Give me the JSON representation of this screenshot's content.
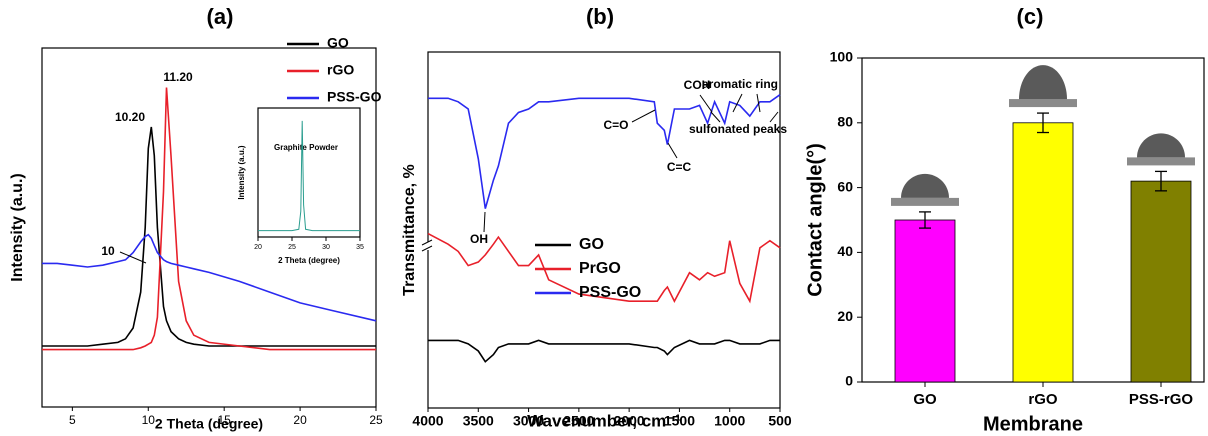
{
  "chart_data": [
    {
      "type": "line",
      "title": "(a)",
      "x_label": "2 Theta (degree)",
      "y_label": "Intensity (a.u.)",
      "x": [
        3,
        4,
        5,
        6,
        7,
        8,
        8.5,
        9,
        9.5,
        9.8,
        10,
        10.2,
        10.4,
        10.6,
        11,
        11.2,
        11.5,
        12,
        12.5,
        13,
        14,
        16,
        18,
        20,
        22,
        25
      ],
      "xlim": [
        3,
        25
      ],
      "xticks": [
        5,
        10,
        15,
        20,
        25
      ],
      "ylim": [
        0,
        100
      ],
      "legend": "upper right",
      "series": [
        {
          "name": "GO",
          "color": "#000000",
          "values": [
            17,
            17,
            17,
            17,
            17.5,
            18,
            19,
            22,
            32,
            50,
            72,
            78,
            70,
            50,
            28,
            24,
            21,
            19,
            18,
            17.5,
            17,
            17,
            17,
            17,
            17,
            17
          ]
        },
        {
          "name": "rGO",
          "color": "#e8202a",
          "values": [
            16,
            16,
            16,
            16,
            16,
            16,
            16,
            16,
            16.5,
            17,
            17.5,
            18,
            20,
            25,
            60,
            89,
            70,
            35,
            24,
            20,
            18,
            17,
            16,
            16,
            16,
            16
          ]
        },
        {
          "name": "PSS-GO",
          "color": "#2a2af0",
          "values": [
            40,
            40,
            39.5,
            39,
            39.5,
            40.5,
            41,
            43,
            46,
            47.5,
            48,
            47,
            45,
            43,
            41,
            40.5,
            40,
            39.5,
            39,
            38.5,
            37.5,
            35,
            32,
            29,
            27,
            24
          ]
        }
      ],
      "annotations": [
        "10.20",
        "11.20",
        "10"
      ]
    },
    {
      "type": "line",
      "title": "Graphite Powder",
      "x_label": "2 Theta (degree)",
      "y_label": "Intensity (a.u.)",
      "x": [
        20,
        22,
        24,
        25,
        26,
        26.3,
        26.5,
        26.7,
        27,
        28,
        30,
        32,
        35
      ],
      "xlim": [
        20,
        35
      ],
      "xticks": [
        20,
        25,
        30,
        35
      ],
      "ylim": [
        0,
        100
      ],
      "series": [
        {
          "color": "#2a9d8f",
          "values": [
            5,
            5,
            5,
            5,
            6,
            20,
            90,
            25,
            6,
            5,
            5,
            5,
            5
          ]
        }
      ]
    },
    {
      "type": "line",
      "title": "(b)",
      "x_label": "Wavenumber, cm⁻¹",
      "y_label": "Transmittance, %",
      "x": [
        4000,
        3800,
        3700,
        3600,
        3500,
        3430,
        3350,
        3300,
        3200,
        3100,
        3000,
        2900,
        2800,
        2500,
        2000,
        1750,
        1720,
        1650,
        1620,
        1550,
        1400,
        1300,
        1220,
        1150,
        1050,
        1000,
        900,
        800,
        700,
        600,
        500
      ],
      "xlim": [
        4000,
        500
      ],
      "xticks": [
        4000,
        3500,
        3000,
        2500,
        2000,
        1500,
        1000,
        500
      ],
      "ylim": [
        0,
        100
      ],
      "legend": "center",
      "series": [
        {
          "name": "GO",
          "color": "#000000",
          "values": [
            19,
            19,
            19,
            18,
            16,
            13,
            15,
            17,
            18,
            18,
            18,
            19,
            18,
            18,
            18,
            17,
            17,
            16,
            15,
            17,
            19,
            18,
            18,
            18,
            19,
            19,
            18,
            18,
            18,
            19,
            19
          ]
        },
        {
          "name": "PrGO",
          "color": "#e8202a",
          "values": [
            49,
            46,
            44,
            40,
            41,
            43,
            46,
            48,
            44,
            40,
            40,
            43,
            36,
            32,
            30,
            30,
            30,
            33,
            34,
            30,
            38,
            36,
            38,
            37,
            38,
            47,
            35,
            30,
            45,
            47,
            45
          ]
        },
        {
          "name": "PSS-GO",
          "color": "#2a2af0",
          "values": [
            87,
            87,
            86,
            84,
            70,
            56,
            64,
            68,
            80,
            83,
            84,
            86,
            86,
            87,
            87,
            86,
            80,
            78,
            74,
            84,
            84,
            85,
            80,
            86,
            80,
            86,
            85,
            82,
            86,
            86,
            88
          ]
        }
      ],
      "annotations": [
        "OH",
        "C=O",
        "COH",
        "C=C",
        "aromatic ring",
        "sulfonated peaks"
      ]
    },
    {
      "type": "bar",
      "title": "(c)",
      "x_label": "Membrane",
      "y_label": "Contact angle(°)",
      "categories": [
        "GO",
        "rGO",
        "PSS-rGO"
      ],
      "values": [
        50,
        80,
        62
      ],
      "errors": [
        2.5,
        3,
        3
      ],
      "colors": [
        "#ff00ff",
        "#ffff00",
        "#808000"
      ],
      "ylim": [
        0,
        100
      ],
      "yticks": [
        0,
        20,
        40,
        60,
        80,
        100
      ]
    }
  ]
}
